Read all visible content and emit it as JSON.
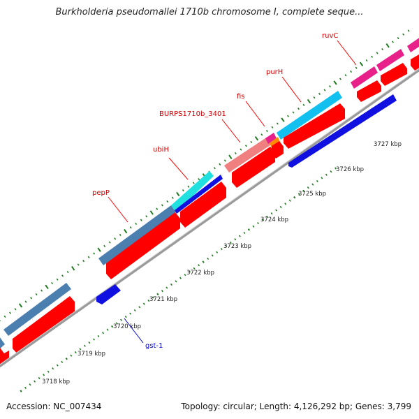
{
  "title": "Burkholderia pseudomallei 1710b chromosome I, complete seque...",
  "footer": {
    "accession": "Accession: NC_007434",
    "summary": "Topology: circular; Length: 4,126,292 bp; Genes: 3,799"
  },
  "colors": {
    "backbone": "#8c8c8c",
    "cds": "#ff0000",
    "gene_steelblue": "#4a7fb0",
    "gene_cyan": "#12c0f0",
    "gene_aqua": "#20e0e0",
    "gene_salmon": "#f08080",
    "gene_magenta": "#e8208a",
    "gene_orange": "#ff8c00",
    "reverse_cds": "#1010e0",
    "tick": "#1f7a1f",
    "label_red": "#cc0000",
    "label_blue": "#0000cc"
  },
  "ruler": {
    "labels": [
      "3718 kbp",
      "3719 kbp",
      "3720 kbp",
      "3721 kbp",
      "3722 kbp",
      "3723 kbp",
      "3724 kbp",
      "3725 kbp",
      "3726 kbp",
      "3727 kbp"
    ]
  },
  "gene_labels": [
    {
      "name": "pepP",
      "strand": "forward"
    },
    {
      "name": "ubiH",
      "strand": "forward"
    },
    {
      "name": "BURPS1710b_3401",
      "strand": "forward"
    },
    {
      "name": "fis",
      "strand": "forward"
    },
    {
      "name": "purH",
      "strand": "forward"
    },
    {
      "name": "ruvC",
      "strand": "forward"
    },
    {
      "name": "gst-1",
      "strand": "reverse"
    }
  ]
}
